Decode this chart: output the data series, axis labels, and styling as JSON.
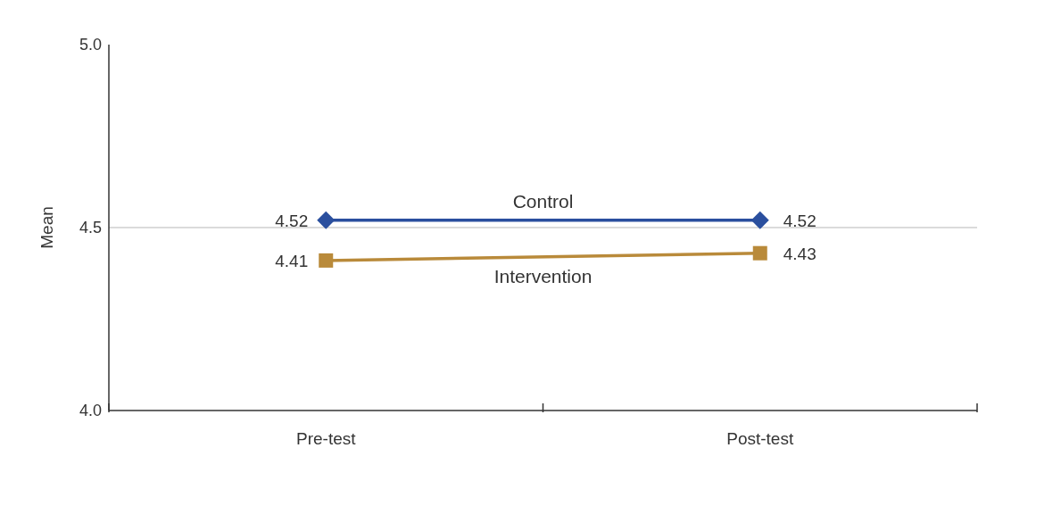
{
  "chart_data": {
    "type": "line",
    "ylabel": "Mean",
    "categories": [
      "Pre-test",
      "Post-test"
    ],
    "series": [
      {
        "name": "Control",
        "color": "#2a4f9e",
        "values": [
          4.52,
          4.52
        ],
        "marker": "diamond"
      },
      {
        "name": "Intervention",
        "color": "#b98a3a",
        "values": [
          4.41,
          4.43
        ],
        "marker": "square"
      }
    ],
    "ylim": [
      4.0,
      5.0
    ],
    "yticks": [
      {
        "value": 4,
        "label": "4.0"
      },
      {
        "value": 4.5,
        "label": "4.5"
      },
      {
        "value": 5,
        "label": "5.0"
      }
    ],
    "ref_lines": [
      {
        "axis": "y",
        "value": 4.5,
        "color": "#cfcfcf"
      }
    ],
    "data_labels": true,
    "legend": false,
    "grid": false
  }
}
